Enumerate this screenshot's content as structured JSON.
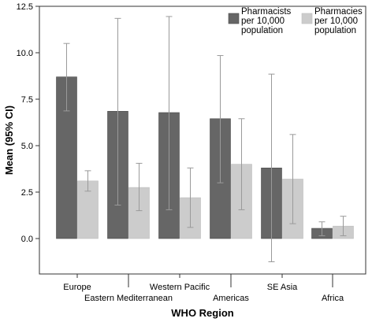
{
  "chart_data": {
    "type": "bar",
    "title": "",
    "xlabel": "WHO Region",
    "ylabel": "Mean (95% CI)",
    "ylim": [
      0,
      12.5
    ],
    "yticks": [
      "0.0",
      "2.5",
      "5.0",
      "7.5",
      "10.0",
      "12.5"
    ],
    "grid": false,
    "legend_position": "top-right",
    "categories": [
      "Europe",
      "Eastern Mediterranean",
      "Western Pacific",
      "Americas",
      "SE Asia",
      "Africa"
    ],
    "series": [
      {
        "name": "Pharmacists per 10,000 population",
        "legend_lines": [
          "Pharmacists",
          "per 10,000",
          "population"
        ],
        "color": "#666666",
        "values": [
          8.7,
          6.85,
          6.78,
          6.45,
          3.8,
          0.55
        ],
        "ci_low": [
          6.87,
          1.8,
          1.55,
          3.0,
          -1.25,
          0.15
        ],
        "ci_high": [
          10.5,
          11.85,
          11.95,
          9.85,
          8.85,
          0.9
        ]
      },
      {
        "name": "Pharmacies per 10,000 population",
        "legend_lines": [
          "Pharmacies",
          "per 10,000",
          "population"
        ],
        "color": "#cccccc",
        "values": [
          3.1,
          2.75,
          2.2,
          4.0,
          3.2,
          0.67
        ],
        "ci_low": [
          2.55,
          1.5,
          0.6,
          1.55,
          0.8,
          0.15
        ],
        "ci_high": [
          3.65,
          4.05,
          3.8,
          6.45,
          5.6,
          1.2
        ]
      }
    ]
  }
}
